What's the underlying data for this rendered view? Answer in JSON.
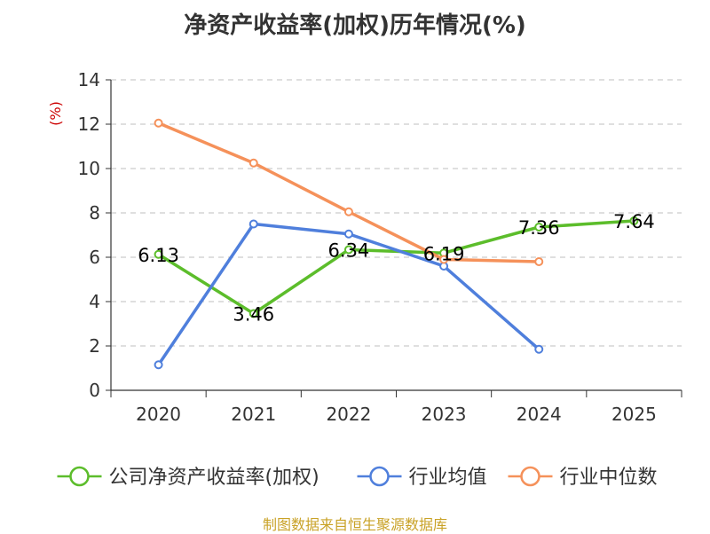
{
  "chart_data": {
    "type": "line",
    "title": "净资产收益率(加权)历年情况(%)",
    "ylabel": "(%)",
    "xlabel": "",
    "categories": [
      "2020",
      "2021",
      "2022",
      "2023",
      "2024",
      "2025"
    ],
    "ylim": [
      0,
      14
    ],
    "yticks": [
      0,
      2,
      4,
      6,
      8,
      10,
      12,
      14
    ],
    "grid": true,
    "legend_position": "bottom",
    "series": [
      {
        "name": "公司净资产收益率(加权)",
        "color": "#5cbd2b",
        "values": [
          6.13,
          3.46,
          6.34,
          6.19,
          7.36,
          7.64
        ],
        "labels": [
          "6.13",
          "3.46",
          "6.34",
          "6.19",
          "7.36",
          "7.64"
        ],
        "show_labels": true
      },
      {
        "name": "行业均值",
        "color": "#4f7fdc",
        "values": [
          1.15,
          7.5,
          7.05,
          5.6,
          1.85,
          null
        ],
        "show_labels": false
      },
      {
        "name": "行业中位数",
        "color": "#f5915a",
        "values": [
          12.05,
          10.25,
          8.05,
          5.9,
          5.8,
          null
        ],
        "show_labels": false
      }
    ]
  },
  "source": "制图数据来自恒生聚源数据库"
}
